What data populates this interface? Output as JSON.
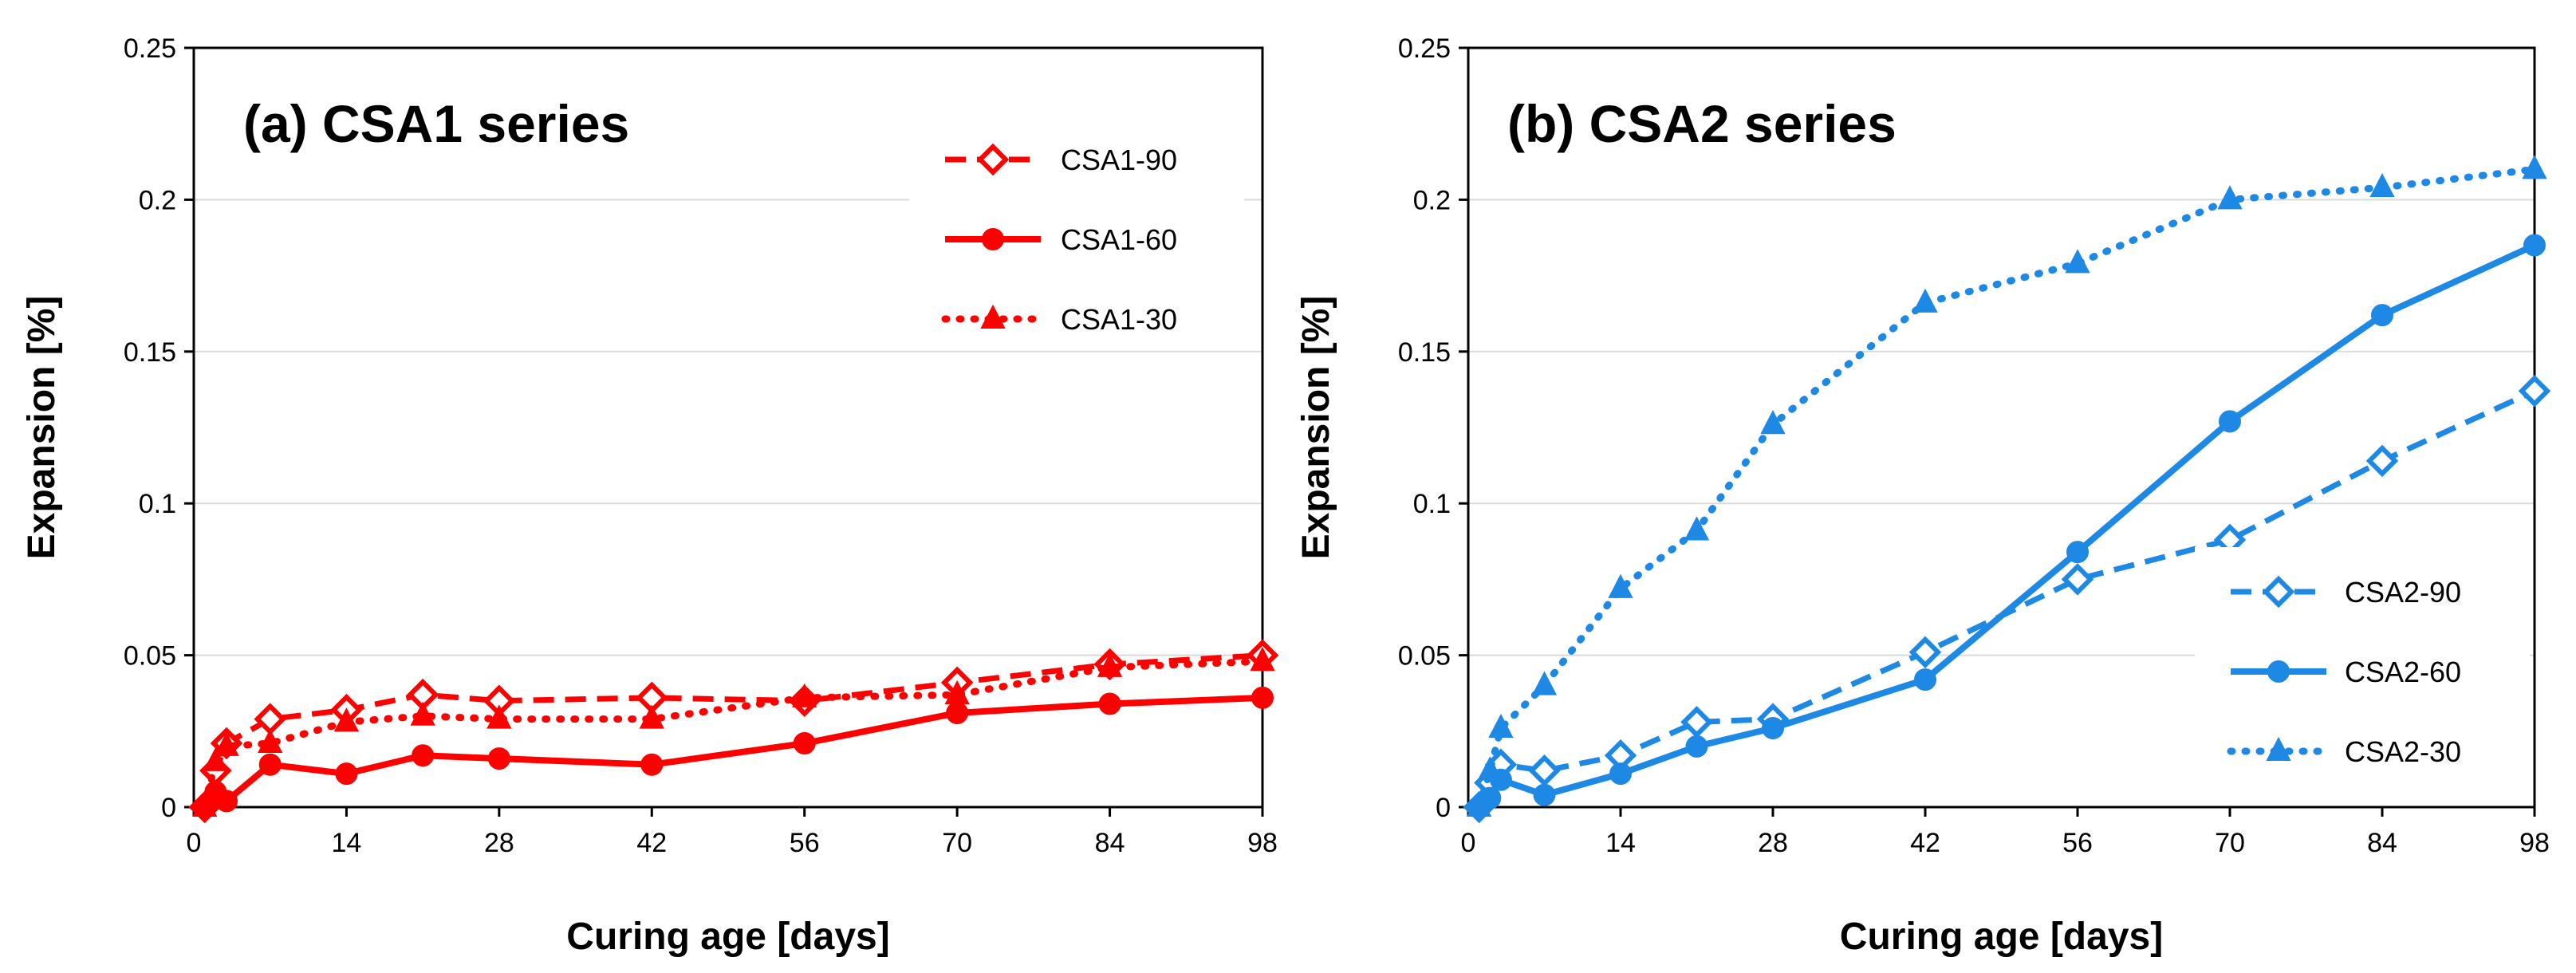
{
  "chart_data": [
    {
      "type": "line",
      "title": "(a) CSA1 series",
      "xlabel": "Curing age [days]",
      "ylabel": "Expansion [%]",
      "xlim": [
        0,
        98
      ],
      "ylim": [
        0,
        0.25
      ],
      "x_ticks": [
        0,
        14,
        28,
        42,
        56,
        70,
        84,
        98
      ],
      "y_ticks": [
        0,
        0.05,
        0.1,
        0.15,
        0.2,
        0.25
      ],
      "x_tick_labels": [
        "0",
        "14",
        "28",
        "42",
        "56",
        "70",
        "84",
        "98"
      ],
      "y_tick_labels": [
        "0",
        "0.05",
        "0.1",
        "0.15",
        "0.2",
        "0.25"
      ],
      "grid": true,
      "legend_position": "top-right",
      "color": "#ff0000",
      "series": [
        {
          "name": "CSA1-90",
          "line": "dashed",
          "marker": "diamond-open",
          "x": [
            1,
            2,
            3,
            7,
            14,
            21,
            28,
            42,
            56,
            70,
            84,
            98
          ],
          "y": [
            0.0,
            0.012,
            0.021,
            0.029,
            0.032,
            0.037,
            0.035,
            0.036,
            0.035,
            0.041,
            0.047,
            0.05
          ]
        },
        {
          "name": "CSA1-60",
          "line": "solid",
          "marker": "circle",
          "x": [
            1,
            2,
            3,
            7,
            14,
            21,
            28,
            42,
            56,
            70,
            84,
            98
          ],
          "y": [
            0.0,
            0.005,
            0.002,
            0.014,
            0.011,
            0.017,
            0.016,
            0.014,
            0.021,
            0.031,
            0.034,
            0.036
          ]
        },
        {
          "name": "CSA1-30",
          "line": "dotted",
          "marker": "triangle",
          "x": [
            1,
            2,
            3,
            7,
            14,
            21,
            28,
            42,
            56,
            70,
            84,
            98
          ],
          "y": [
            0.0,
            0.015,
            0.02,
            0.021,
            0.028,
            0.03,
            0.029,
            0.029,
            0.036,
            0.037,
            0.046,
            0.048
          ]
        }
      ]
    },
    {
      "type": "line",
      "title": "(b) CSA2 series",
      "xlabel": "Curing age [days]",
      "ylabel": "Expansion [%]",
      "xlim": [
        0,
        98
      ],
      "ylim": [
        0,
        0.25
      ],
      "x_ticks": [
        0,
        14,
        28,
        42,
        56,
        70,
        84,
        98
      ],
      "y_ticks": [
        0,
        0.05,
        0.1,
        0.15,
        0.2,
        0.25
      ],
      "x_tick_labels": [
        "0",
        "14",
        "28",
        "42",
        "56",
        "70",
        "84",
        "98"
      ],
      "y_tick_labels": [
        "0",
        "0.05",
        "0.1",
        "0.15",
        "0.2",
        "0.25"
      ],
      "grid": true,
      "legend_position": "bottom-right",
      "color": "#1e88e5",
      "series": [
        {
          "name": "CSA2-90",
          "line": "dashed",
          "marker": "diamond-open",
          "x": [
            1,
            2,
            3,
            7,
            14,
            21,
            28,
            42,
            56,
            70,
            84,
            98
          ],
          "y": [
            0.0,
            0.008,
            0.014,
            0.012,
            0.017,
            0.028,
            0.029,
            0.051,
            0.075,
            0.088,
            0.114,
            0.137
          ]
        },
        {
          "name": "CSA2-60",
          "line": "solid",
          "marker": "circle",
          "x": [
            1,
            2,
            3,
            7,
            14,
            21,
            28,
            42,
            56,
            70,
            84,
            98
          ],
          "y": [
            0.0,
            0.003,
            0.009,
            0.004,
            0.011,
            0.02,
            0.026,
            0.042,
            0.084,
            0.127,
            0.162,
            0.185
          ]
        },
        {
          "name": "CSA2-30",
          "line": "dotted",
          "marker": "triangle",
          "x": [
            1,
            2,
            3,
            7,
            14,
            21,
            28,
            42,
            56,
            70,
            84,
            98
          ],
          "y": [
            0.0,
            0.012,
            0.026,
            0.04,
            0.072,
            0.091,
            0.126,
            0.166,
            0.179,
            0.2,
            0.204,
            0.21
          ]
        }
      ]
    }
  ]
}
